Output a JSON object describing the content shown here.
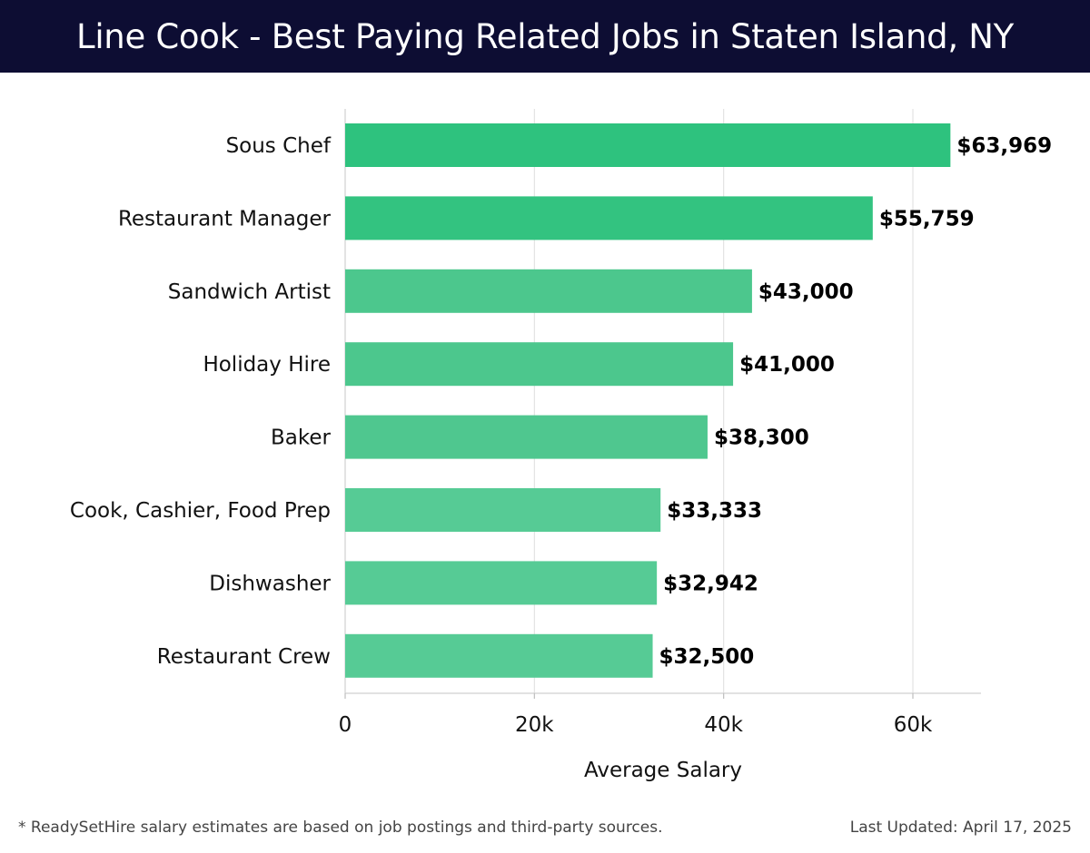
{
  "header": {
    "title": "Line Cook - Best Paying Related Jobs in Staten Island, NY"
  },
  "footer": {
    "note": "* ReadySetHire salary estimates are based on job postings and third-party sources.",
    "updated": "Last Updated: April 17, 2025"
  },
  "chart_data": {
    "type": "bar",
    "orientation": "horizontal",
    "title": "Line Cook - Best Paying Related Jobs in Staten Island, NY",
    "xlabel": "Average Salary",
    "ylabel": "",
    "categories": [
      "Sous Chef",
      "Restaurant Manager",
      "Sandwich Artist",
      "Holiday Hire",
      "Baker",
      "Cook, Cashier, Food Prep",
      "Dishwasher",
      "Restaurant Crew"
    ],
    "values": [
      63969,
      55759,
      43000,
      41000,
      38300,
      33333,
      32942,
      32500
    ],
    "value_labels": [
      "$63,969",
      "$55,759",
      "$43,000",
      "$41,000",
      "$38,300",
      "$33,333",
      "$32,942",
      "$32,500"
    ],
    "xlim": [
      0,
      67200
    ],
    "xticks": [
      0,
      20000,
      40000,
      60000
    ],
    "xtick_labels": [
      "0",
      "20k",
      "40k",
      "60k"
    ],
    "grid": true,
    "colors": [
      "#2ec27e",
      "#33c380",
      "#4cc78d",
      "#4cc78d",
      "#4fc78f",
      "#56cb95",
      "#56cb95",
      "#56cb95"
    ]
  }
}
